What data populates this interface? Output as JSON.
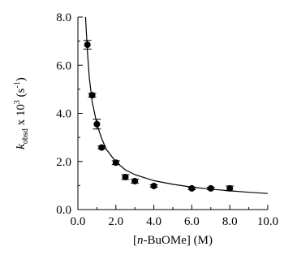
{
  "chart_data": {
    "type": "scatter",
    "xlabel_parts": {
      "open": "[",
      "italic": "n",
      "rest": "-BuOMe] (M)"
    },
    "ylabel_parts": {
      "italic": "k",
      "sub": "obsd",
      "mid": " x 10",
      "sup": "3",
      "tail": " (s",
      "sup2": "-1",
      "close": ")"
    },
    "xlim": [
      0,
      10
    ],
    "ylim": [
      0,
      8
    ],
    "x_ticks": [
      0,
      2,
      4,
      6,
      8,
      10
    ],
    "x_tick_labels": [
      "0.0",
      "2.0",
      "4.0",
      "6.0",
      "8.0",
      "10.0"
    ],
    "y_ticks": [
      0,
      2,
      4,
      6,
      8
    ],
    "y_tick_labels": [
      "0.0",
      "2.0",
      "4.0",
      "6.0",
      "8.0"
    ],
    "grid": false,
    "points": [
      {
        "x": 0.5,
        "y": 6.85,
        "err": 0.18
      },
      {
        "x": 0.75,
        "y": 4.75,
        "err": 0.08
      },
      {
        "x": 1.0,
        "y": 3.55,
        "err": 0.2
      },
      {
        "x": 1.25,
        "y": 2.58,
        "err": 0.06
      },
      {
        "x": 2.0,
        "y": 1.95,
        "err": 0.08
      },
      {
        "x": 2.5,
        "y": 1.35,
        "err": 0.1
      },
      {
        "x": 3.0,
        "y": 1.18,
        "err": 0.08
      },
      {
        "x": 4.0,
        "y": 0.98,
        "err": 0.05
      },
      {
        "x": 6.0,
        "y": 0.88,
        "err": 0.05
      },
      {
        "x": 7.0,
        "y": 0.88,
        "err": 0.05
      },
      {
        "x": 8.0,
        "y": 0.88,
        "err": 0.1
      }
    ],
    "fit_curve": [
      {
        "x": 0.4,
        "y": 8.0
      },
      {
        "x": 0.5,
        "y": 6.6
      },
      {
        "x": 0.6,
        "y": 5.5
      },
      {
        "x": 0.75,
        "y": 4.5
      },
      {
        "x": 1.0,
        "y": 3.55
      },
      {
        "x": 1.25,
        "y": 2.95
      },
      {
        "x": 1.5,
        "y": 2.5
      },
      {
        "x": 2.0,
        "y": 1.98
      },
      {
        "x": 2.5,
        "y": 1.65
      },
      {
        "x": 3.0,
        "y": 1.45
      },
      {
        "x": 4.0,
        "y": 1.2
      },
      {
        "x": 5.0,
        "y": 1.05
      },
      {
        "x": 6.0,
        "y": 0.93
      },
      {
        "x": 7.0,
        "y": 0.85
      },
      {
        "x": 8.0,
        "y": 0.78
      },
      {
        "x": 9.0,
        "y": 0.72
      },
      {
        "x": 10.0,
        "y": 0.67
      }
    ]
  }
}
